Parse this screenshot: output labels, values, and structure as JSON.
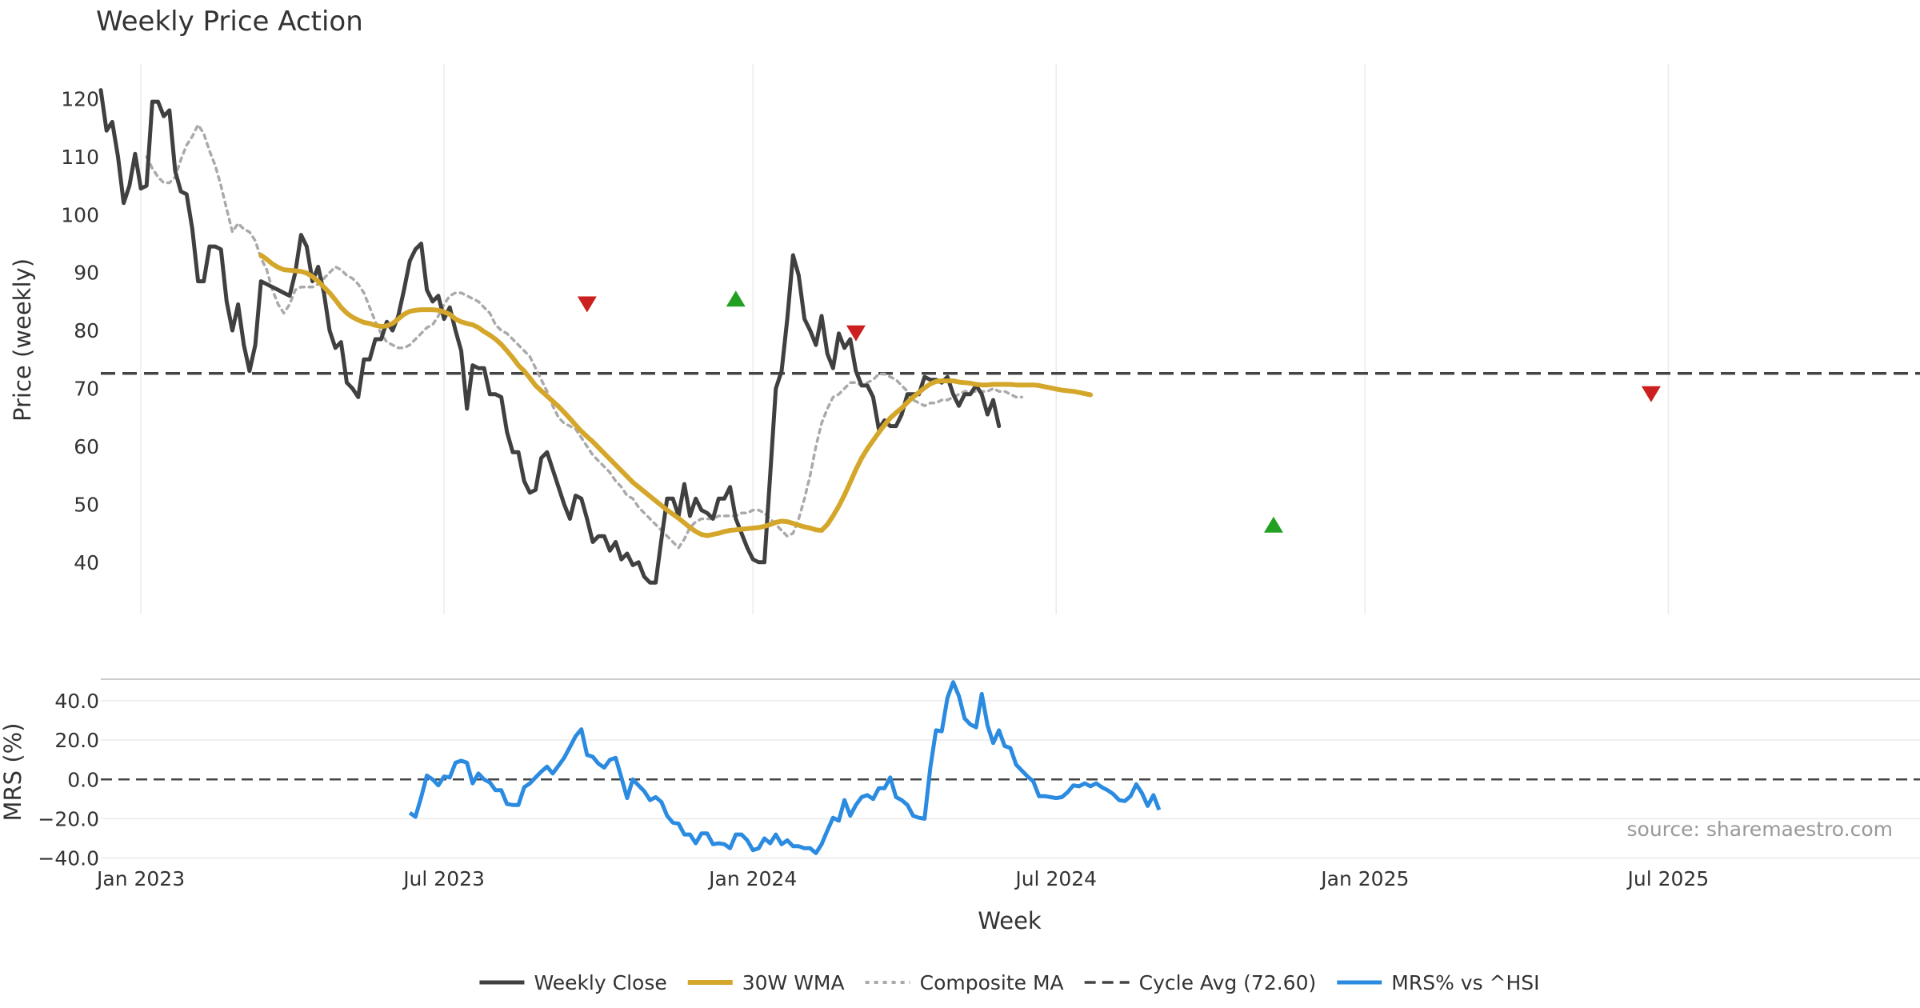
{
  "chart_data": {
    "type": "line",
    "title": "Weekly Price Action",
    "xlabel": "Week",
    "source": "source: sharemaestro.com",
    "colors": {
      "close": "#404040",
      "wma": "#d4a62a",
      "composite": "#aaaaaa",
      "cycle": "#444444",
      "mrs": "#2a8be0",
      "up_marker": "#22a022",
      "down_marker": "#cc1f1f"
    },
    "x_ticks": [
      "Jan 2023",
      "Jul 2023",
      "Jan 2024",
      "Jul 2024",
      "Jan 2025",
      "Jul 2025"
    ],
    "x_tick_weeks": [
      7,
      60,
      114,
      167,
      221,
      274
    ],
    "x_range": [
      0,
      318
    ],
    "price_panel": {
      "ylabel": "Price (weekly)",
      "ylim": [
        31,
        126
      ],
      "yticks": [
        "40",
        "50",
        "60",
        "70",
        "80",
        "90",
        "100",
        "110",
        "120"
      ],
      "ytick_values": [
        40,
        50,
        60,
        70,
        80,
        90,
        100,
        110,
        120
      ],
      "cycle_avg": 72.6,
      "series": [
        {
          "name": "Weekly Close",
          "x0": 0,
          "values": [
            121.5,
            114.5,
            116,
            110,
            102,
            105,
            110.5,
            104.5,
            105,
            119.5,
            119.5,
            117,
            118,
            107.5,
            104,
            103.5,
            97.5,
            88.5,
            88.5,
            94.5,
            94.5,
            94,
            85,
            80,
            84.5,
            77.5,
            73,
            77.5,
            88.5,
            88,
            87.5,
            87,
            86.5,
            86,
            90,
            96.5,
            94.5,
            88.5,
            91,
            86.5,
            80,
            77,
            78,
            71,
            70,
            68.5,
            75,
            75,
            78.5,
            78.5,
            81.5,
            80,
            82.5,
            87,
            92,
            94,
            95,
            87,
            85,
            86,
            82,
            84,
            80,
            76.5,
            66.5,
            74,
            73.5,
            73.5,
            69,
            69,
            68.5,
            62.5,
            59,
            59,
            54,
            52,
            52.5,
            58,
            59,
            56,
            53,
            50,
            47.5,
            51.5,
            51,
            47.5,
            43.5,
            44.5,
            44.5,
            42,
            43.5,
            40.5,
            41.5,
            39.5,
            40,
            37.5,
            36.5,
            36.5,
            44,
            51,
            51,
            48,
            53.5,
            48,
            51,
            49,
            48.5,
            47.5,
            51,
            51,
            53,
            47.5,
            45,
            42.5,
            40.5,
            40,
            40,
            55,
            70,
            73,
            82,
            93,
            89.5,
            82,
            80,
            77.5,
            82.5,
            76,
            73.5,
            79.5,
            77,
            78.5,
            73,
            70.5,
            70.5,
            68.5,
            63,
            64.5,
            63.5,
            63.5,
            65.5,
            69,
            69,
            69,
            72,
            71.5,
            71.5,
            71,
            72,
            69,
            67,
            69,
            69,
            70.5,
            69,
            65.5,
            68,
            63.5
          ]
        },
        {
          "name": "30W WMA",
          "x0": 28,
          "values": [
            93,
            92.3,
            91.5,
            90.9,
            90.5,
            90.4,
            90.3,
            90.2,
            89.9,
            89.3,
            88.5,
            87.5,
            86.5,
            85.3,
            84,
            83,
            82.3,
            81.8,
            81.4,
            81.2,
            80.9,
            80.7,
            80.8,
            81.2,
            82,
            82.8,
            83.3,
            83.5,
            83.6,
            83.6,
            83.6,
            83.5,
            83.2,
            82.8,
            82,
            81.5,
            81.2,
            81,
            80.5,
            79.8,
            79.2,
            78.5,
            77.6,
            76.5,
            75.3,
            74,
            73,
            71.8,
            70.5,
            69.6,
            68.7,
            67.8,
            66.9,
            65.9,
            64.8,
            63.7,
            62.6,
            61.7,
            60.8,
            59.8,
            58.8,
            57.8,
            56.8,
            55.8,
            54.8,
            53.8,
            53,
            52.2,
            51.4,
            50.6,
            49.8,
            49,
            48.3,
            47.6,
            46.8,
            46,
            45.3,
            44.8,
            44.6,
            44.8,
            45,
            45.3,
            45.5,
            45.6,
            45.7,
            45.8,
            45.9,
            46,
            46.2,
            46.5,
            46.9,
            47.1,
            47,
            46.7,
            46.4,
            46.1,
            45.9,
            45.6,
            45.5,
            46.5,
            48,
            49.7,
            51.6,
            53.8,
            56,
            58,
            59.6,
            61,
            62.4,
            63.7,
            64.9,
            65.8,
            66.6,
            67.6,
            68.5,
            69.3,
            70.1,
            70.8,
            71.2,
            71.3,
            71.3,
            71.3,
            71.1,
            71,
            70.9,
            70.7,
            70.6,
            70.6,
            70.7,
            70.7,
            70.7,
            70.7,
            70.6,
            70.6,
            70.6,
            70.6,
            70.5,
            70.3,
            70.1,
            69.9,
            69.7,
            69.6,
            69.5,
            69.3,
            69.1,
            68.9
          ]
        },
        {
          "name": "Composite MA",
          "x0": 8,
          "values": [
            110,
            108,
            106.5,
            105.5,
            105.5,
            106.5,
            109.5,
            112,
            113.5,
            115.5,
            114,
            111,
            108.5,
            105,
            101,
            97,
            98.5,
            97.5,
            97,
            95.5,
            92.5,
            90.5,
            87,
            84.5,
            83,
            84.5,
            87,
            87.5,
            87.5,
            87.5,
            88,
            89,
            90,
            91,
            90.5,
            89.5,
            89,
            88,
            86.5,
            84,
            81.5,
            79.5,
            78,
            77.5,
            77,
            77,
            77.5,
            78.5,
            79.5,
            80.5,
            81,
            82.5,
            84.5,
            86,
            86.5,
            86.5,
            86,
            85.5,
            85,
            84,
            83,
            81,
            80,
            79.5,
            78.5,
            77.5,
            76.5,
            75.5,
            73.5,
            71.5,
            69.5,
            67,
            65,
            64,
            63.5,
            63,
            61.5,
            60,
            58.5,
            57.5,
            56.5,
            55.5,
            54,
            53,
            51.5,
            51,
            49.5,
            48.5,
            47.5,
            46.5,
            45.5,
            44.5,
            43.5,
            42.5,
            44,
            46,
            47,
            47.5,
            47.5,
            47.5,
            48,
            48,
            48,
            48,
            48.5,
            48.5,
            49,
            49,
            48.5,
            47.5,
            46.5,
            45.5,
            44.5,
            45,
            47.5,
            51,
            55,
            60,
            64,
            66.5,
            68.5,
            69,
            70,
            71,
            71,
            70.5,
            71,
            71.5,
            72.5,
            72.5,
            72,
            71.5,
            70.5,
            69.5,
            68,
            67.5,
            67,
            67.5,
            67.5,
            68,
            68,
            68.5,
            69,
            69.5,
            69.5,
            69.5,
            69.5,
            69.5,
            70,
            69.5,
            69.5,
            69,
            68.5,
            68.5
          ]
        }
      ],
      "markers": [
        {
          "type": "down",
          "x": 85,
          "y": 84.5
        },
        {
          "type": "up",
          "x": 111,
          "y": 85.5
        },
        {
          "type": "down",
          "x": 132,
          "y": 79.5
        },
        {
          "type": "up",
          "x": 205,
          "y": 46.5
        },
        {
          "type": "down",
          "x": 271,
          "y": 69
        }
      ]
    },
    "mrs_panel": {
      "ylabel": "MRS (%)",
      "ylim": [
        -41,
        51
      ],
      "yticks": [
        "40.0",
        "20.0",
        "0.0",
        "−20.0",
        "−40.0"
      ],
      "ytick_values": [
        40,
        20,
        0,
        -20,
        -40
      ],
      "series": [
        {
          "name": "MRS% vs ^HSI",
          "x0": 54,
          "values": [
            -17,
            -19,
            -9,
            2,
            0,
            -3,
            1.5,
            1,
            8.5,
            9.5,
            8.5,
            -2,
            3,
            0,
            -1.5,
            -5.5,
            -5.5,
            -12.5,
            -13,
            -13,
            -4,
            -2,
            1,
            4,
            6.5,
            3,
            7,
            11,
            16.5,
            22,
            25.5,
            12.5,
            11.5,
            8,
            6,
            10,
            11,
            1,
            -9.5,
            0,
            -3,
            -6,
            -10.5,
            -9,
            -11.5,
            -18.5,
            -22,
            -22.5,
            -28,
            -28,
            -32.5,
            -27.5,
            -27.5,
            -33,
            -32.5,
            -33,
            -35,
            -28,
            -28,
            -31,
            -36,
            -35,
            -30,
            -32.5,
            -28,
            -33,
            -31,
            -34,
            -34,
            -35,
            -35,
            -37.5,
            -33,
            -26,
            -19.5,
            -21,
            -10.5,
            -18.5,
            -13,
            -9,
            -8,
            -10,
            -4.5,
            -4.5,
            1,
            -9,
            -10.5,
            -13,
            -18.5,
            -19.5,
            -20,
            6,
            25,
            24.5,
            41.5,
            49.5,
            42.5,
            31,
            28,
            26.5,
            43.5,
            27.5,
            18.5,
            25,
            17,
            16,
            7.5,
            4.5,
            1.5,
            -1,
            -8.5,
            -8.5,
            -9,
            -9.5,
            -9,
            -6.5,
            -3,
            -3.5,
            -2,
            -3.5,
            -2,
            -4,
            -5.5,
            -7.5,
            -10.5,
            -11,
            -8.5,
            -2.5,
            -7,
            -13.5,
            -8,
            -15.5
          ]
        }
      ]
    },
    "legend": [
      {
        "label": "Weekly Close",
        "style": "close"
      },
      {
        "label": "30W WMA",
        "style": "wma"
      },
      {
        "label": "Composite MA",
        "style": "composite"
      },
      {
        "label": "Cycle Avg (72.60)",
        "style": "cycle"
      },
      {
        "label": "MRS% vs ^HSI",
        "style": "mrs"
      }
    ]
  }
}
